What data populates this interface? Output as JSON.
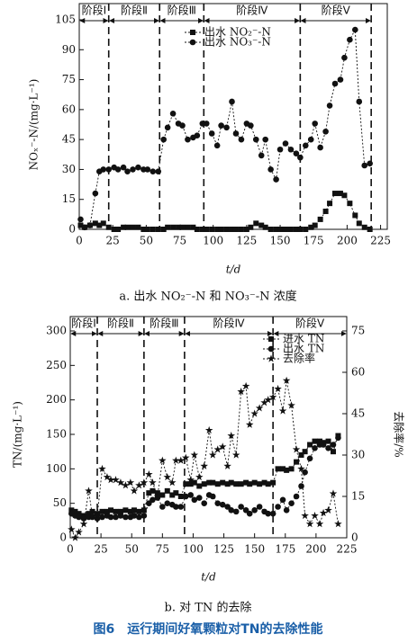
{
  "caption": "图6　运行期间好氧颗粒对TN的去除性能",
  "chart_data": [
    {
      "type": "line",
      "subtitle": "a. 出水 NO₂⁻-N 和 NO₃⁻-N 浓度",
      "xlabel": "t/d",
      "ylabel": "NOₓ⁻-N/(mg·L⁻¹)",
      "xlim": [
        0,
        230
      ],
      "xticks": [
        0,
        25,
        50,
        75,
        100,
        125,
        150,
        175,
        200,
        225
      ],
      "ylim": [
        0,
        105
      ],
      "yticks": [
        0,
        15,
        30,
        45,
        60,
        75,
        90,
        105
      ],
      "stages": [
        "阶段Ⅰ",
        "阶段Ⅱ",
        "阶段Ⅲ",
        "阶段Ⅳ",
        "阶段Ⅴ"
      ],
      "stage_boundaries": [
        22,
        60,
        93,
        165,
        218
      ],
      "x": [
        1,
        4,
        8,
        12,
        15,
        18,
        22,
        26,
        29,
        33,
        36,
        40,
        44,
        48,
        51,
        55,
        59,
        63,
        66,
        70,
        74,
        77,
        81,
        85,
        88,
        92,
        95,
        99,
        103,
        106,
        110,
        114,
        117,
        121,
        125,
        128,
        132,
        136,
        139,
        143,
        147,
        150,
        154,
        158,
        162,
        165,
        169,
        173,
        176,
        180,
        184,
        187,
        191,
        195,
        198,
        202,
        206,
        209,
        213,
        217
      ],
      "series": [
        {
          "name": "出水 NO₂⁻-N",
          "color": "#111111",
          "marker": "square",
          "values": [
            2,
            1,
            2,
            3,
            2,
            3,
            1,
            0,
            0,
            1,
            1,
            1,
            1,
            0,
            0,
            0,
            0,
            0,
            1,
            1,
            1,
            1,
            1,
            1,
            0,
            0,
            0,
            0,
            0,
            0,
            0,
            0,
            0,
            0,
            0,
            1,
            3,
            2,
            1,
            0,
            0,
            0,
            0,
            0,
            0,
            0,
            0,
            1,
            2,
            5,
            9,
            13,
            18,
            18,
            17,
            13,
            7,
            3,
            1,
            0
          ]
        },
        {
          "name": "出水 NO₃⁻-N",
          "color": "#111111",
          "marker": "circle",
          "values": [
            5,
            1,
            2,
            18,
            29,
            30,
            30,
            31,
            30,
            31,
            29,
            30,
            31,
            30,
            30,
            29,
            29,
            45,
            51,
            58,
            53,
            52,
            45,
            46,
            47,
            53,
            53,
            48,
            42,
            52,
            51,
            64,
            48,
            45,
            53,
            52,
            45,
            37,
            45,
            30,
            25,
            40,
            43,
            40,
            38,
            36,
            42,
            45,
            53,
            41,
            49,
            62,
            73,
            75,
            86,
            95,
            100,
            64,
            32,
            33
          ]
        }
      ]
    },
    {
      "type": "line",
      "subtitle": "b. 对 TN 的去除",
      "xlabel": "t/d",
      "ylabel": "TN/(mg·L⁻¹)",
      "y2label": "去除率/%",
      "xlim": [
        0,
        225
      ],
      "xticks": [
        0,
        25,
        50,
        75,
        100,
        125,
        150,
        175,
        200,
        225
      ],
      "ylim": [
        0,
        300
      ],
      "yticks": [
        0,
        50,
        100,
        150,
        200,
        250,
        300
      ],
      "y2lim": [
        0,
        75
      ],
      "y2ticks": [
        0,
        15,
        30,
        45,
        60,
        75
      ],
      "stages": [
        "阶段Ⅰ",
        "阶段Ⅱ",
        "阶段Ⅲ",
        "阶段Ⅳ",
        "阶段Ⅴ"
      ],
      "stage_boundaries": [
        22,
        60,
        93,
        165
      ],
      "x": [
        1,
        4,
        7,
        11,
        15,
        18,
        22,
        26,
        30,
        33,
        37,
        41,
        45,
        49,
        52,
        56,
        60,
        64,
        67,
        71,
        75,
        79,
        83,
        86,
        90,
        94,
        98,
        101,
        105,
        109,
        113,
        116,
        120,
        124,
        128,
        131,
        135,
        139,
        143,
        146,
        150,
        154,
        158,
        161,
        165,
        169,
        173,
        176,
        180,
        184,
        188,
        191,
        195,
        199,
        203,
        206,
        210,
        214,
        218
      ],
      "series": [
        {
          "name": "进水 TN",
          "color": "#111111",
          "marker": "square",
          "values": [
            40,
            38,
            35,
            32,
            35,
            38,
            35,
            38,
            38,
            40,
            38,
            38,
            40,
            38,
            40,
            38,
            40,
            65,
            68,
            65,
            62,
            68,
            62,
            65,
            60,
            78,
            78,
            80,
            75,
            78,
            80,
            80,
            78,
            80,
            78,
            80,
            78,
            78,
            80,
            78,
            80,
            78,
            80,
            78,
            80,
            100,
            100,
            98,
            100,
            110,
            120,
            125,
            135,
            140,
            140,
            138,
            140,
            125,
            148
          ]
        },
        {
          "name": "出水 TN",
          "color": "#111111",
          "marker": "circle",
          "values": [
            35,
            32,
            30,
            28,
            30,
            30,
            28,
            30,
            32,
            30,
            30,
            32,
            30,
            30,
            32,
            30,
            32,
            50,
            55,
            58,
            45,
            50,
            48,
            45,
            45,
            60,
            62,
            55,
            58,
            50,
            62,
            60,
            50,
            48,
            45,
            40,
            38,
            45,
            40,
            35,
            40,
            45,
            38,
            35,
            35,
            45,
            55,
            40,
            50,
            60,
            75,
            95,
            115,
            130,
            135,
            135,
            130,
            135,
            145
          ]
        },
        {
          "name": "去除率",
          "color": "#111111",
          "marker": "star",
          "axis": "y2",
          "values": [
            3,
            0,
            2,
            5,
            17,
            8,
            8,
            25,
            22,
            21,
            21,
            20,
            19,
            20,
            17,
            19,
            20,
            23,
            20,
            15,
            28,
            22,
            20,
            28,
            28,
            29,
            21,
            30,
            22,
            26,
            39,
            30,
            32,
            33,
            26,
            37,
            30,
            53,
            55,
            41,
            45,
            47,
            49,
            50,
            51,
            54,
            46,
            57,
            48,
            32,
            25,
            8,
            5,
            8,
            5,
            9,
            10,
            16,
            5
          ]
        }
      ]
    }
  ]
}
